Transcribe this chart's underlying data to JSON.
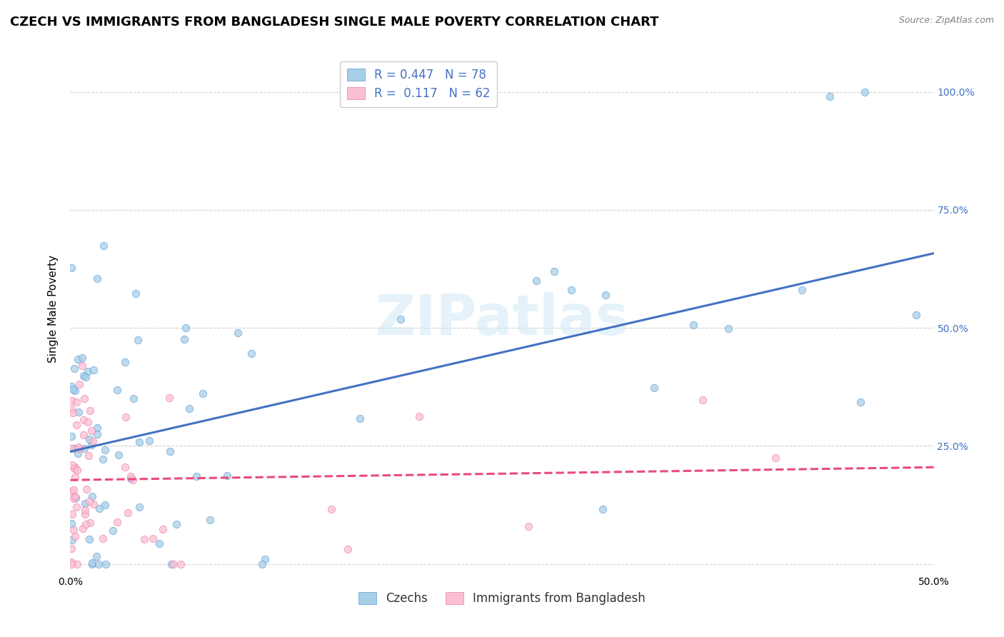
{
  "title": "CZECH VS IMMIGRANTS FROM BANGLADESH SINGLE MALE POVERTY CORRELATION CHART",
  "source": "Source: ZipAtlas.com",
  "ylabel": "Single Male Poverty",
  "watermark": "ZIPatlas",
  "xlim": [
    0.0,
    0.5
  ],
  "ylim": [
    -0.02,
    1.1
  ],
  "ytick_positions": [
    0.0,
    0.25,
    0.5,
    0.75,
    1.0
  ],
  "ytick_labels": [
    "",
    "25.0%",
    "50.0%",
    "75.0%",
    "100.0%"
  ],
  "xtick_positions": [
    0.0,
    0.1,
    0.2,
    0.3,
    0.4,
    0.5
  ],
  "xtick_labels": [
    "0.0%",
    "",
    "",
    "",
    "",
    "50.0%"
  ],
  "legend1_label": "R = 0.447   N = 78",
  "legend2_label": "R =  0.117   N = 62",
  "series1_name": "Czechs",
  "series2_name": "Immigrants from Bangladesh",
  "scatter1_face_color": "#a8cfe8",
  "scatter1_edge_color": "#5b9bd5",
  "scatter2_face_color": "#fbbfd4",
  "scatter2_edge_color": "#e87da8",
  "line1_color": "#4472c4",
  "line2_color": "#e84b7a",
  "R1": 0.447,
  "N1": 78,
  "R2": 0.117,
  "N2": 62,
  "background_color": "#ffffff",
  "grid_color": "#cccccc",
  "title_fontsize": 13,
  "axis_label_fontsize": 11,
  "tick_fontsize": 10,
  "legend_fontsize": 12,
  "scatter_size": 55,
  "scatter_alpha": 0.75,
  "line_width": 2.2
}
